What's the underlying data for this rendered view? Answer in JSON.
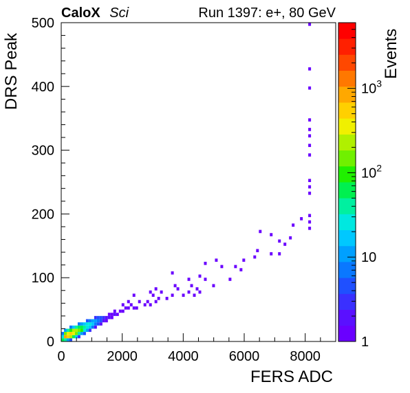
{
  "chart_data": {
    "type": "heatmap",
    "title_bold": "CaloX",
    "title_italic": "Sci",
    "run_label": "Run 1397: e+, 80 GeV",
    "xlabel": "FERS ADC",
    "ylabel": "DRS Peak",
    "zlabel": "Events",
    "xlim": [
      0,
      9000
    ],
    "ylim": [
      0,
      500
    ],
    "zlim": [
      1,
      6000
    ],
    "z_log": true,
    "grid": false,
    "x_ticks": [
      {
        "value": 0,
        "label": "0"
      },
      {
        "value": 2000,
        "label": "2000"
      },
      {
        "value": 4000,
        "label": "4000"
      },
      {
        "value": 6000,
        "label": "6000"
      },
      {
        "value": 8000,
        "label": "8000"
      }
    ],
    "y_ticks": [
      {
        "value": 0,
        "label": "0"
      },
      {
        "value": 100,
        "label": "100"
      },
      {
        "value": 200,
        "label": "200"
      },
      {
        "value": 300,
        "label": "300"
      },
      {
        "value": 400,
        "label": "400"
      },
      {
        "value": 500,
        "label": "500"
      }
    ],
    "z_ticks": [
      {
        "value": 1,
        "base": "1",
        "exp": ""
      },
      {
        "value": 10,
        "base": "10",
        "exp": ""
      },
      {
        "value": 100,
        "base": "10",
        "exp": "2"
      },
      {
        "value": 1000,
        "base": "10",
        "exp": "3"
      }
    ],
    "bin_width": 90,
    "bin_height": 5,
    "palette": [
      "#6a00ff",
      "#5a10ff",
      "#3a30ff",
      "#1f50ff",
      "#0a78ff",
      "#00a0ff",
      "#00c8ff",
      "#00e8e0",
      "#00f0a0",
      "#00f050",
      "#20f000",
      "#70f000",
      "#b0f000",
      "#f0f000",
      "#ffd000",
      "#ffa800",
      "#ff7800",
      "#ff4800",
      "#ff2000",
      "#ff0000"
    ],
    "cells": [
      [
        45,
        2.5,
        60
      ],
      [
        135,
        2.5,
        40
      ],
      [
        225,
        2.5,
        12
      ],
      [
        315,
        2.5,
        4
      ],
      [
        45,
        7.5,
        30
      ],
      [
        135,
        7.5,
        800
      ],
      [
        225,
        7.5,
        600
      ],
      [
        315,
        7.5,
        200
      ],
      [
        405,
        7.5,
        60
      ],
      [
        495,
        7.5,
        15
      ],
      [
        585,
        7.5,
        3
      ],
      [
        45,
        12.5,
        8
      ],
      [
        135,
        12.5,
        120
      ],
      [
        225,
        12.5,
        400
      ],
      [
        315,
        12.5,
        500
      ],
      [
        405,
        12.5,
        300
      ],
      [
        495,
        12.5,
        120
      ],
      [
        585,
        12.5,
        40
      ],
      [
        675,
        12.5,
        12
      ],
      [
        765,
        12.5,
        4
      ],
      [
        135,
        17.5,
        10
      ],
      [
        225,
        17.5,
        40
      ],
      [
        315,
        17.5,
        100
      ],
      [
        405,
        17.5,
        200
      ],
      [
        495,
        17.5,
        250
      ],
      [
        585,
        17.5,
        160
      ],
      [
        675,
        17.5,
        80
      ],
      [
        765,
        17.5,
        30
      ],
      [
        855,
        17.5,
        10
      ],
      [
        945,
        17.5,
        3
      ],
      [
        315,
        22.5,
        8
      ],
      [
        405,
        22.5,
        20
      ],
      [
        495,
        22.5,
        50
      ],
      [
        585,
        22.5,
        70
      ],
      [
        675,
        22.5,
        60
      ],
      [
        765,
        22.5,
        45
      ],
      [
        855,
        22.5,
        30
      ],
      [
        945,
        22.5,
        15
      ],
      [
        1035,
        22.5,
        6
      ],
      [
        1125,
        22.5,
        2
      ],
      [
        585,
        27.5,
        6
      ],
      [
        675,
        27.5,
        12
      ],
      [
        765,
        27.5,
        20
      ],
      [
        855,
        27.5,
        25
      ],
      [
        945,
        27.5,
        22
      ],
      [
        1035,
        27.5,
        15
      ],
      [
        1125,
        27.5,
        8
      ],
      [
        1215,
        27.5,
        4
      ],
      [
        1305,
        27.5,
        2
      ],
      [
        855,
        32.5,
        4
      ],
      [
        945,
        32.5,
        7
      ],
      [
        1035,
        32.5,
        10
      ],
      [
        1125,
        32.5,
        10
      ],
      [
        1215,
        32.5,
        7
      ],
      [
        1305,
        32.5,
        4
      ],
      [
        1395,
        32.5,
        2
      ],
      [
        1485,
        32.5,
        1
      ],
      [
        1125,
        37.5,
        3
      ],
      [
        1215,
        37.5,
        4
      ],
      [
        1305,
        37.5,
        4
      ],
      [
        1395,
        37.5,
        3
      ],
      [
        1485,
        37.5,
        2
      ],
      [
        1575,
        37.5,
        2
      ],
      [
        1665,
        37.5,
        1
      ],
      [
        1575,
        42.5,
        1
      ],
      [
        1665,
        42.5,
        1
      ],
      [
        1755,
        42.5,
        2
      ],
      [
        1845,
        42.5,
        1
      ],
      [
        1755,
        47.5,
        1
      ],
      [
        1935,
        47.5,
        1
      ],
      [
        2025,
        47.5,
        1
      ],
      [
        2115,
        52.5,
        1
      ],
      [
        2205,
        52.5,
        1
      ],
      [
        2385,
        52.5,
        1
      ],
      [
        2475,
        52.5,
        1
      ],
      [
        2025,
        57.5,
        1
      ],
      [
        2295,
        57.5,
        1
      ],
      [
        2745,
        57.5,
        1
      ],
      [
        2925,
        57.5,
        1
      ],
      [
        2205,
        62.5,
        1
      ],
      [
        2565,
        62.5,
        1
      ],
      [
        2835,
        62.5,
        1
      ],
      [
        3105,
        62.5,
        1
      ],
      [
        3195,
        67.5,
        1
      ],
      [
        3465,
        67.5,
        1
      ],
      [
        2385,
        72.5,
        1
      ],
      [
        3015,
        72.5,
        1
      ],
      [
        3645,
        72.5,
        1
      ],
      [
        4005,
        72.5,
        1
      ],
      [
        4365,
        72.5,
        1
      ],
      [
        2925,
        77.5,
        1
      ],
      [
        3285,
        77.5,
        1
      ],
      [
        4185,
        77.5,
        1
      ],
      [
        4545,
        77.5,
        1
      ],
      [
        3105,
        82.5,
        1
      ],
      [
        3825,
        82.5,
        1
      ],
      [
        4455,
        82.5,
        1
      ],
      [
        3735,
        87.5,
        1
      ],
      [
        4275,
        87.5,
        1
      ],
      [
        4995,
        87.5,
        1
      ],
      [
        4185,
        97.5,
        1
      ],
      [
        4725,
        97.5,
        1
      ],
      [
        5535,
        97.5,
        1
      ],
      [
        4545,
        102.5,
        1
      ],
      [
        3645,
        107.5,
        1
      ],
      [
        5895,
        112.5,
        1
      ],
      [
        5265,
        117.5,
        1
      ],
      [
        5715,
        117.5,
        1
      ],
      [
        4725,
        122.5,
        1
      ],
      [
        5085,
        127.5,
        1
      ],
      [
        5985,
        127.5,
        1
      ],
      [
        6345,
        132.5,
        1
      ],
      [
        6885,
        137.5,
        1
      ],
      [
        7155,
        137.5,
        1
      ],
      [
        6435,
        142.5,
        1
      ],
      [
        7335,
        152.5,
        1
      ],
      [
        7155,
        157.5,
        1
      ],
      [
        7515,
        162.5,
        1
      ],
      [
        6885,
        167.5,
        1
      ],
      [
        6525,
        172.5,
        1
      ],
      [
        8145,
        177.5,
        1
      ],
      [
        7605,
        182.5,
        1
      ],
      [
        8145,
        187.5,
        1
      ],
      [
        7875,
        192.5,
        1
      ],
      [
        8145,
        197.5,
        1
      ],
      [
        8145,
        232.5,
        1
      ],
      [
        8145,
        242.5,
        1
      ],
      [
        8145,
        252.5,
        1
      ],
      [
        8145,
        292.5,
        1
      ],
      [
        8145,
        307.5,
        1
      ],
      [
        8145,
        322.5,
        1
      ],
      [
        8145,
        332.5,
        1
      ],
      [
        8145,
        347.5,
        1
      ],
      [
        8145,
        397.5,
        1
      ],
      [
        8145,
        427.5,
        1
      ],
      [
        8145,
        497.5,
        1
      ]
    ]
  }
}
